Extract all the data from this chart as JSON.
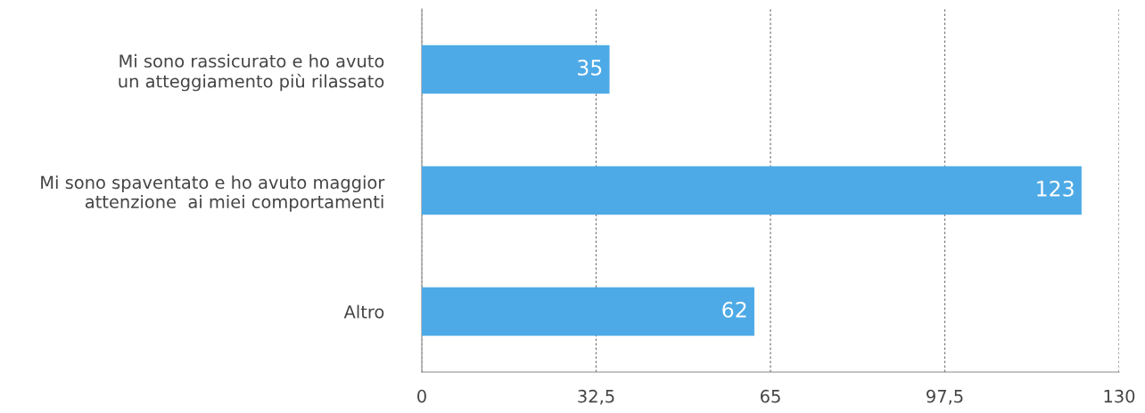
{
  "chart_data": {
    "type": "bar",
    "orientation": "horizontal",
    "categories": [
      "Mi sono rassicurato e ho avuto\nun atteggiamento più rilassato",
      "Mi sono spaventato e ho avuto maggior\nattenzione  ai miei comportamenti",
      "Altro"
    ],
    "values": [
      35,
      123,
      62
    ],
    "color": "#4eaae6",
    "xlim": [
      0,
      130
    ],
    "xticks": [
      0,
      {
        "value": 32.5,
        "label": "32,5"
      },
      65,
      {
        "value": 97.5,
        "label": "97,5"
      },
      130
    ],
    "grid": "x",
    "data_labels": true
  }
}
